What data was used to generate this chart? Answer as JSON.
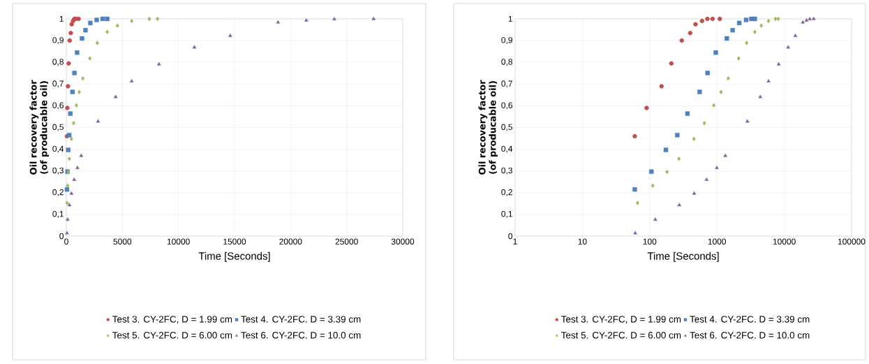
{
  "chart_data": [
    {
      "type": "scatter",
      "xlabel": "Time [Seconds]",
      "ylabel": "Oil recovery factor (of producable oil)",
      "xlim": [
        0,
        30000
      ],
      "ylim": [
        0,
        1
      ],
      "xticks": [
        0,
        5000,
        10000,
        15000,
        20000,
        25000,
        30000
      ],
      "yticks": [
        0,
        {
          "value": 0.1,
          "label": "0,1"
        },
        {
          "value": 0.2,
          "label": "0,2"
        },
        {
          "value": 0.3,
          "label": "0,3"
        },
        {
          "value": 0.4,
          "label": "0,4"
        },
        {
          "value": 0.5,
          "label": "0,5"
        },
        {
          "value": 0.6,
          "label": "0,6"
        },
        {
          "value": 0.7,
          "label": "0,7"
        },
        {
          "value": 0.8,
          "label": "0,8"
        },
        {
          "value": 0.9,
          "label": "0,9"
        },
        1
      ],
      "grid": true,
      "legend": "bottom",
      "series": [
        {
          "name": "Test 3. CY-2FC, D = 1.99 cm",
          "color": "#c0504d",
          "marker": "circle",
          "x": [
            60,
            90,
            150,
            210,
            300,
            400,
            480,
            600,
            720,
            860,
            1100
          ],
          "values": [
            0.46,
            0.59,
            0.69,
            0.795,
            0.9,
            0.935,
            0.975,
            0.99,
            1.0,
            1.0,
            1.0
          ]
        },
        {
          "name": "Test 4. CY-2FC. D = 3.39 cm",
          "color": "#4f81bd",
          "marker": "square",
          "x": [
            60,
            106,
            174,
            257,
            364,
            552,
            725,
            960,
            1400,
            1710,
            2140,
            2710,
            3240,
            3650
          ],
          "values": [
            0.215,
            0.297,
            0.397,
            0.465,
            0.564,
            0.664,
            0.751,
            0.845,
            0.91,
            0.948,
            0.981,
            0.995,
            1.0,
            1.0
          ]
        },
        {
          "name": "Test 5. CY-2FC. D = 6.00 cm",
          "color": "#9bbb59",
          "marker": "diamond",
          "x": [
            66,
            111,
            181,
            272,
            454,
            649,
            897,
            1150,
            1470,
            2100,
            2760,
            3650,
            4560,
            5830,
            7400,
            8130
          ],
          "values": [
            0.153,
            0.232,
            0.296,
            0.356,
            0.448,
            0.52,
            0.602,
            0.663,
            0.726,
            0.818,
            0.889,
            0.94,
            0.969,
            0.99,
            1.0,
            1.0
          ]
        },
        {
          "name": "Test 6. CY-2FC. D = 10.0 cm",
          "color": "#8064a2",
          "marker": "triangle",
          "x": [
            61,
            121,
            275,
            458,
            701,
            993,
            1330,
            2830,
            4400,
            5830,
            8260,
            11420,
            14620,
            18880,
            21400,
            23900,
            27400
          ],
          "values": [
            0.014,
            0.076,
            0.143,
            0.196,
            0.26,
            0.314,
            0.37,
            0.528,
            0.641,
            0.713,
            0.791,
            0.869,
            0.922,
            0.984,
            0.993,
            0.999,
            1.0
          ]
        }
      ]
    },
    {
      "type": "scatter",
      "xlabel": "Time [Seconds]",
      "ylabel": "Oil recovery factor (of producable oil)",
      "xlim": [
        1,
        100000
      ],
      "ylim": [
        0,
        1
      ],
      "log": "x",
      "xticks": [
        1,
        10,
        100,
        1000,
        10000,
        100000
      ],
      "yticks": [
        0,
        {
          "value": 0.1,
          "label": "0,1"
        },
        {
          "value": 0.2,
          "label": "0,2"
        },
        {
          "value": 0.3,
          "label": "0,3"
        },
        {
          "value": 0.4,
          "label": "0,4"
        },
        {
          "value": 0.5,
          "label": "0,5"
        },
        {
          "value": 0.6,
          "label": "0,6"
        },
        {
          "value": 0.7,
          "label": "0,7"
        },
        {
          "value": 0.8,
          "label": "0,8"
        },
        {
          "value": 0.9,
          "label": "0,9"
        },
        1
      ],
      "grid": true,
      "legend": "bottom",
      "series": [
        {
          "name": "Test 3. CY-2FC, D = 1.99 cm",
          "color": "#c0504d",
          "marker": "circle",
          "x": [
            60,
            90,
            150,
            210,
            300,
            400,
            480,
            600,
            720,
            860,
            1100
          ],
          "values": [
            0.46,
            0.59,
            0.69,
            0.795,
            0.9,
            0.935,
            0.975,
            0.99,
            1.0,
            1.0,
            1.0
          ]
        },
        {
          "name": "Test 4. CY-2FC. D = 3.39 cm",
          "color": "#4f81bd",
          "marker": "square",
          "x": [
            60,
            106,
            174,
            257,
            364,
            552,
            725,
            960,
            1400,
            1710,
            2140,
            2710,
            3240,
            3650
          ],
          "values": [
            0.215,
            0.297,
            0.397,
            0.465,
            0.564,
            0.664,
            0.751,
            0.845,
            0.91,
            0.948,
            0.981,
            0.995,
            1.0,
            1.0
          ]
        },
        {
          "name": "Test 5. CY-2FC. D = 6.00 cm",
          "color": "#9bbb59",
          "marker": "diamond",
          "x": [
            66,
            111,
            181,
            272,
            454,
            649,
            897,
            1150,
            1470,
            2100,
            2760,
            3650,
            4560,
            5830,
            7400,
            8130
          ],
          "values": [
            0.153,
            0.232,
            0.296,
            0.356,
            0.448,
            0.52,
            0.602,
            0.663,
            0.726,
            0.818,
            0.889,
            0.94,
            0.969,
            0.99,
            1.0,
            1.0
          ]
        },
        {
          "name": "Test 6. CY-2FC. D = 10.0 cm",
          "color": "#8064a2",
          "marker": "triangle",
          "x": [
            61,
            121,
            275,
            458,
            701,
            993,
            1330,
            2830,
            4400,
            5830,
            8260,
            11420,
            14620,
            18880,
            21400,
            23900,
            27400
          ],
          "values": [
            0.014,
            0.076,
            0.143,
            0.196,
            0.26,
            0.314,
            0.37,
            0.528,
            0.641,
            0.713,
            0.791,
            0.869,
            0.922,
            0.984,
            0.993,
            0.999,
            1.0
          ]
        }
      ]
    }
  ]
}
